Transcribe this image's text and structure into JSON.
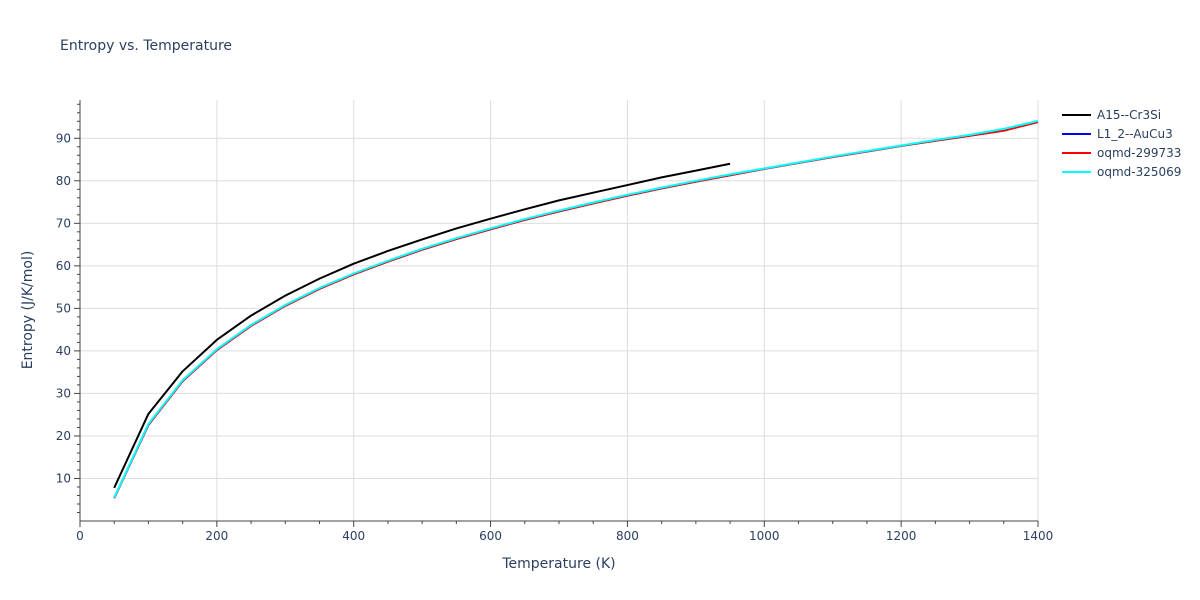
{
  "chart_data": {
    "type": "line",
    "title": "Entropy vs. Temperature",
    "xlabel": "Temperature (K)",
    "ylabel": "Entropy (J/K/mol)",
    "xlim": [
      0,
      1400
    ],
    "ylim": [
      0,
      99
    ],
    "x_ticks": [
      0,
      200,
      400,
      600,
      800,
      1000,
      1200,
      1400
    ],
    "x_tick_labels": [
      "0",
      "200",
      "400",
      "600",
      "800",
      "1000",
      "1200",
      "1400"
    ],
    "y_ticks": [
      10,
      20,
      30,
      40,
      50,
      60,
      70,
      80,
      90
    ],
    "y_tick_labels": [
      "10",
      "20",
      "30",
      "40",
      "50",
      "60",
      "70",
      "80",
      "90"
    ],
    "grid": true,
    "legend_position": "top-right outside",
    "series": [
      {
        "name": "A15--Cr3Si",
        "color": "#000000",
        "x": [
          50,
          100,
          150,
          200,
          250,
          300,
          350,
          400,
          450,
          500,
          550,
          600,
          650,
          700,
          750,
          800,
          850,
          900,
          950
        ],
        "y": [
          7.8,
          25.2,
          35.2,
          42.6,
          48.3,
          53.0,
          57.0,
          60.5,
          63.5,
          66.2,
          68.8,
          71.1,
          73.3,
          75.4,
          77.2,
          79.0,
          80.8,
          82.4,
          84.0
        ]
      },
      {
        "name": "L1_2--AuCu3",
        "color": "#0000ff",
        "x": [
          50,
          100,
          150,
          200,
          250,
          300,
          350,
          400,
          450,
          500,
          550,
          600,
          650,
          700,
          750,
          800,
          850,
          900,
          950,
          1000,
          1050,
          1100,
          1150,
          1200,
          1250,
          1300,
          1350,
          1400
        ],
        "y": [
          5.4,
          22.6,
          32.9,
          40.2,
          45.9,
          50.6,
          54.6,
          58.0,
          61.0,
          63.8,
          66.3,
          68.6,
          70.8,
          72.8,
          74.7,
          76.5,
          78.2,
          79.8,
          81.3,
          82.8,
          84.2,
          85.6,
          86.9,
          88.2,
          89.4,
          90.6,
          91.8,
          93.9
        ]
      },
      {
        "name": "oqmd-299733",
        "color": "#ff0000",
        "x": [
          50,
          100,
          150,
          200,
          250,
          300,
          350,
          400,
          450,
          500,
          550,
          600,
          650,
          700,
          750,
          800,
          850,
          900,
          950,
          1000,
          1050,
          1100,
          1150,
          1200,
          1250,
          1300,
          1350,
          1400
        ],
        "y": [
          5.4,
          22.6,
          32.9,
          40.2,
          45.9,
          50.6,
          54.6,
          58.0,
          61.0,
          63.8,
          66.3,
          68.6,
          70.8,
          72.8,
          74.7,
          76.5,
          78.2,
          79.8,
          81.3,
          82.8,
          84.2,
          85.6,
          86.9,
          88.2,
          89.4,
          90.6,
          91.8,
          93.8
        ]
      },
      {
        "name": "oqmd-325069",
        "color": "#00ffff",
        "x": [
          50,
          100,
          150,
          200,
          250,
          300,
          350,
          400,
          450,
          500,
          550,
          600,
          650,
          700,
          750,
          800,
          850,
          900,
          950,
          1000,
          1050,
          1100,
          1150,
          1200,
          1250,
          1300,
          1350,
          1400
        ],
        "y": [
          5.5,
          22.8,
          33.1,
          40.4,
          46.1,
          50.8,
          54.8,
          58.2,
          61.2,
          64.0,
          66.5,
          68.8,
          71.0,
          73.0,
          74.9,
          76.7,
          78.4,
          80.0,
          81.5,
          82.9,
          84.3,
          85.7,
          87.0,
          88.3,
          89.6,
          90.8,
          92.2,
          94.1
        ]
      }
    ]
  }
}
